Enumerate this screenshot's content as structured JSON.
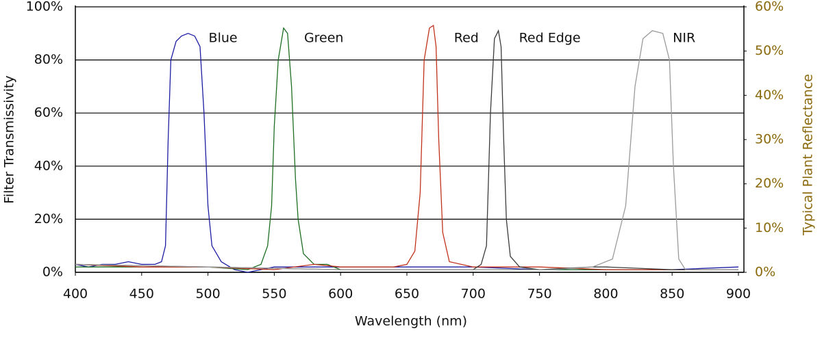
{
  "chart_data": {
    "type": "line",
    "xlabel": "Wavelength (nm)",
    "ylabel": "Filter Transmissivity",
    "y2label": "Typical Plant Reflectance",
    "xlim": [
      400,
      900
    ],
    "xticks": [
      400,
      450,
      500,
      550,
      600,
      650,
      700,
      750,
      800,
      850,
      900
    ],
    "ylim": [
      0,
      100
    ],
    "yticks": [
      {
        "value": 0,
        "label": "0%"
      },
      {
        "value": 20,
        "label": "20%"
      },
      {
        "value": 40,
        "label": "40%"
      },
      {
        "value": 60,
        "label": "60%"
      },
      {
        "value": 80,
        "label": "80%"
      },
      {
        "value": 100,
        "label": "100%"
      }
    ],
    "y2lim": [
      0,
      60
    ],
    "y2ticks": [
      {
        "value": 0,
        "label": "0%"
      },
      {
        "value": 10,
        "label": "10%"
      },
      {
        "value": 20,
        "label": "20%"
      },
      {
        "value": 30,
        "label": "30%"
      },
      {
        "value": 40,
        "label": "40%"
      },
      {
        "value": 50,
        "label": "50%"
      },
      {
        "value": 60,
        "label": "60%"
      }
    ],
    "grid": true,
    "series": [
      {
        "name": "Blue",
        "color": "#1c1ca3",
        "x": [
          400,
          410,
          420,
          430,
          440,
          450,
          460,
          465,
          468,
          470,
          472,
          476,
          480,
          485,
          490,
          494,
          497,
          500,
          503,
          510,
          520,
          530,
          540,
          550,
          600,
          650,
          700,
          750,
          800,
          850,
          900
        ],
        "values": [
          3,
          2,
          3,
          3,
          4,
          3,
          3,
          4,
          10,
          50,
          80,
          87,
          89,
          90,
          89,
          85,
          60,
          25,
          10,
          4,
          1,
          0,
          1,
          2,
          2,
          2,
          2,
          1,
          1,
          1,
          2
        ]
      },
      {
        "name": "Green",
        "color": "#1d6e22",
        "x": [
          400,
          450,
          500,
          530,
          540,
          545,
          548,
          550,
          553,
          557,
          560,
          563,
          566,
          568,
          572,
          580,
          590,
          600,
          700,
          800,
          900
        ],
        "values": [
          2,
          2,
          2,
          1,
          3,
          10,
          25,
          55,
          80,
          92,
          90,
          70,
          35,
          20,
          7,
          3,
          3,
          1,
          1,
          1,
          1
        ]
      },
      {
        "name": "Red",
        "color": "#c0321c",
        "x": [
          400,
          450,
          500,
          550,
          580,
          600,
          640,
          650,
          656,
          660,
          663,
          667,
          670,
          672,
          674,
          677,
          682,
          700,
          750,
          800,
          900
        ],
        "values": [
          3,
          2,
          2,
          1,
          3,
          2,
          2,
          3,
          8,
          30,
          80,
          92,
          93,
          85,
          50,
          15,
          4,
          2,
          2,
          1,
          1
        ]
      },
      {
        "name": "Red Edge",
        "color": "#3a3a3a",
        "x": [
          400,
          500,
          600,
          700,
          706,
          710,
          713,
          716,
          719,
          721,
          723,
          725,
          728,
          735,
          750,
          790,
          800,
          850,
          900
        ],
        "values": [
          3,
          2,
          1,
          1,
          3,
          10,
          60,
          88,
          91,
          85,
          50,
          20,
          6,
          2,
          1,
          2,
          2,
          1,
          1
        ]
      },
      {
        "name": "NIR",
        "color": "#9a9a9a",
        "x": [
          400,
          500,
          600,
          700,
          760,
          790,
          805,
          815,
          822,
          828,
          835,
          843,
          848,
          851,
          855,
          860,
          900
        ],
        "values": [
          3,
          2,
          1,
          1,
          1,
          2,
          5,
          25,
          70,
          88,
          91,
          90,
          80,
          40,
          5,
          1,
          1
        ]
      }
    ]
  }
}
